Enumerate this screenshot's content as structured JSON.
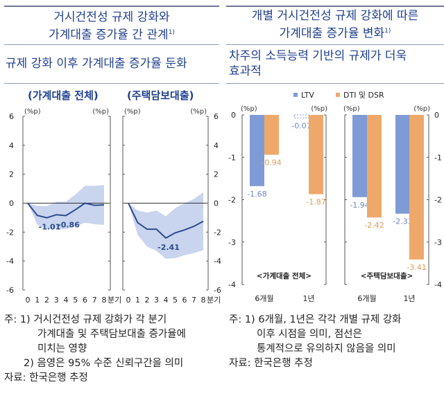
{
  "left": {
    "title_line1": "거시건전성 규제 강화와",
    "title_line2": "가계대출 증가율 간 관계",
    "title_sup": "1)",
    "subtitle": "규제 강화 이후 가계대출 증가율 둔화",
    "notes": [
      "주: 1) 거시건전성 규제 강화가 각 분기",
      "가계대출 및 주택담보대출 증가율에",
      "미치는 영향",
      "2) 음영은 95% 수준 신뢰구간을 의미",
      "자료: 한국은행 추정"
    ]
  },
  "right": {
    "title_line1": "개별 거시건전성 규제 강화에 따른",
    "title_line2": "가계대출 증가율 변화",
    "title_sup": "1)",
    "subtitle_line1": "차주의 소득능력 기반의 규제가 더욱",
    "subtitle_line2": "효과적",
    "notes": [
      "주: 1) 6개월, 1년은 각각 개별 규제 강화",
      "이후 시점을 의미, 점선은",
      "통계적으로 유의하지 않음을 의미",
      "자료: 한국은행 추정"
    ]
  },
  "colors": {
    "title": "#1f3f8f",
    "line": "#2d4a8e",
    "band": "#c9d5ee",
    "ltv": "#7f9bd6",
    "dti": "#eea86a"
  },
  "chart_data": [
    {
      "type": "line",
      "title": "(가계대출 전체)",
      "unit": "(%p)",
      "x_unit": "분기",
      "x": [
        0,
        1,
        2,
        3,
        4,
        5,
        6,
        7,
        8
      ],
      "ylim": [
        -6,
        6
      ],
      "yticks": [
        6,
        4,
        2,
        0,
        -2,
        -4,
        -6
      ],
      "series": [
        {
          "name": "estimate",
          "values": [
            0,
            -0.85,
            -1.01,
            -0.8,
            -0.86,
            -0.45,
            0,
            -0.15,
            -0.12
          ]
        }
      ],
      "band_upper": [
        0,
        -0.2,
        -0.2,
        0.1,
        0.1,
        0.6,
        1.2,
        1.2,
        1.25
      ],
      "band_lower": [
        0,
        -1.5,
        -1.8,
        -1.75,
        -1.8,
        -1.6,
        -1.35,
        -1.45,
        -1.5
      ],
      "annotations": [
        {
          "x": 2,
          "label": "-1.01"
        },
        {
          "x": 4,
          "label": "-0.86"
        }
      ]
    },
    {
      "type": "line",
      "title": "(주택담보대출)",
      "unit": "(%p)",
      "x_unit": "분기",
      "x": [
        0,
        1,
        2,
        3,
        4,
        5,
        6,
        7,
        8
      ],
      "ylim": [
        -6,
        6
      ],
      "yticks": [
        6,
        4,
        2,
        0,
        -2,
        -4,
        -6
      ],
      "series": [
        {
          "name": "estimate",
          "values": [
            0,
            -1.35,
            -1.8,
            -1.8,
            -2.41,
            -2.05,
            -1.85,
            -1.6,
            -1.25
          ]
        }
      ],
      "band_upper": [
        0,
        -0.5,
        -0.65,
        -0.5,
        -0.9,
        -0.35,
        0,
        0.3,
        0.75
      ],
      "band_lower": [
        0,
        -2.2,
        -3.0,
        -3.3,
        -3.85,
        -3.8,
        -3.6,
        -3.45,
        -3.25
      ],
      "annotations": [
        {
          "x": 4,
          "label": "-2.41"
        }
      ]
    },
    {
      "type": "bar",
      "title": "<가계대출 전체>",
      "unit": "(%p)",
      "categories": [
        "6개월",
        "1년"
      ],
      "ylim": [
        -4,
        0
      ],
      "yticks": [
        0,
        -1,
        -2,
        -3,
        -4
      ],
      "legend": [
        "LTV",
        "DTI 및 DSR"
      ],
      "series": [
        {
          "name": "LTV",
          "values": [
            -1.68,
            -0.07
          ],
          "labels": [
            "-1.68",
            "-0.07"
          ],
          "significant": [
            true,
            false
          ]
        },
        {
          "name": "DTI 및 DSR",
          "values": [
            -0.94,
            -1.87
          ],
          "labels": [
            "-0.94",
            "-1.87"
          ],
          "significant": [
            true,
            true
          ]
        }
      ]
    },
    {
      "type": "bar",
      "title": "<주택담보대출>",
      "unit": "(%p)",
      "categories": [
        "6개월",
        "1년"
      ],
      "ylim": [
        -4,
        0
      ],
      "yticks": [
        0,
        -1,
        -2,
        -3,
        -4
      ],
      "series": [
        {
          "name": "LTV",
          "values": [
            -1.94,
            -2.33
          ],
          "labels": [
            "-1.94",
            "-2.33"
          ],
          "significant": [
            true,
            true
          ]
        },
        {
          "name": "DTI 및 DSR",
          "values": [
            -2.42,
            -3.41
          ],
          "labels": [
            "-2.42",
            "-3.41"
          ],
          "significant": [
            true,
            true
          ]
        }
      ]
    }
  ]
}
